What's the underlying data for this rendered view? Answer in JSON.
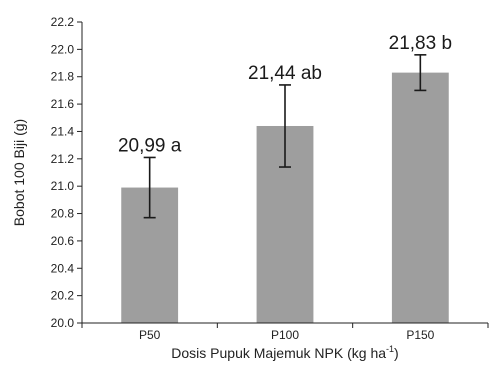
{
  "chart_data": {
    "type": "bar",
    "categories": [
      "P50",
      "P100",
      "P150"
    ],
    "values": [
      20.99,
      21.44,
      21.83
    ],
    "error": [
      0.22,
      0.3,
      0.13
    ],
    "data_labels": [
      "20,99 a",
      "21,44 ab",
      "21,83 b"
    ],
    "xlabel": "Dosis Pupuk Majemuk NPK (kg ha",
    "xlabel_sup": "-1",
    "xlabel_end": ")",
    "ylabel": "Bobot 100 Biji (g)",
    "ylim": [
      20.0,
      22.2
    ],
    "yticks": [
      "20.0",
      "20.2",
      "20.4",
      "20.6",
      "20.8",
      "21.0",
      "21.2",
      "21.4",
      "21.6",
      "21.8",
      "22.0",
      "22.2"
    ],
    "grid": false,
    "colors": {
      "bar": "#9e9e9e",
      "axis": "#222222",
      "error_bar": "#1a1a1a"
    }
  }
}
